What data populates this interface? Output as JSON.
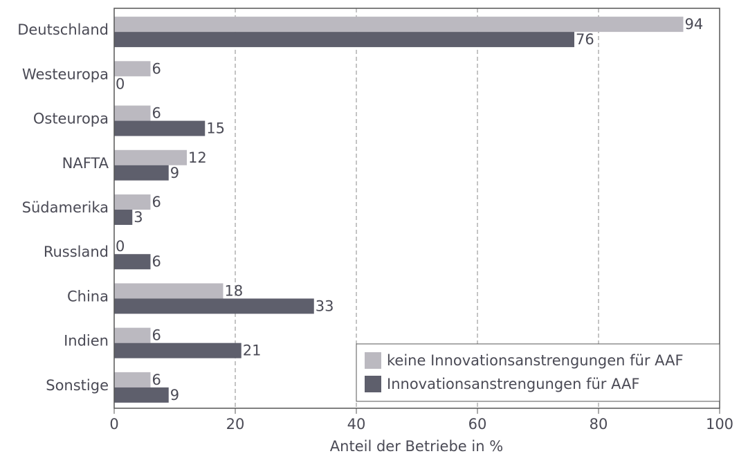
{
  "chart_data": {
    "type": "barh",
    "xlabel": "Anteil der Betriebe in %",
    "categories": [
      "Deutschland",
      "Westeuropa",
      "Osteuropa",
      "NAFTA",
      "Südamerika",
      "Russland",
      "China",
      "Indien",
      "Sonstige"
    ],
    "series": [
      {
        "name": "keine Innovationsanstrengungen für AAF",
        "color": "#bbb9c0",
        "values": [
          94,
          6,
          6,
          12,
          6,
          0,
          18,
          6,
          6
        ]
      },
      {
        "name": "Innovationsanstrengungen für AAF",
        "color": "#5e5f6c",
        "values": [
          76,
          0,
          15,
          9,
          3,
          6,
          33,
          21,
          9
        ]
      }
    ],
    "xlim": [
      0,
      100
    ],
    "xticks": [
      0,
      20,
      40,
      60,
      80,
      100
    ],
    "grid": true,
    "legend": "lower right"
  }
}
